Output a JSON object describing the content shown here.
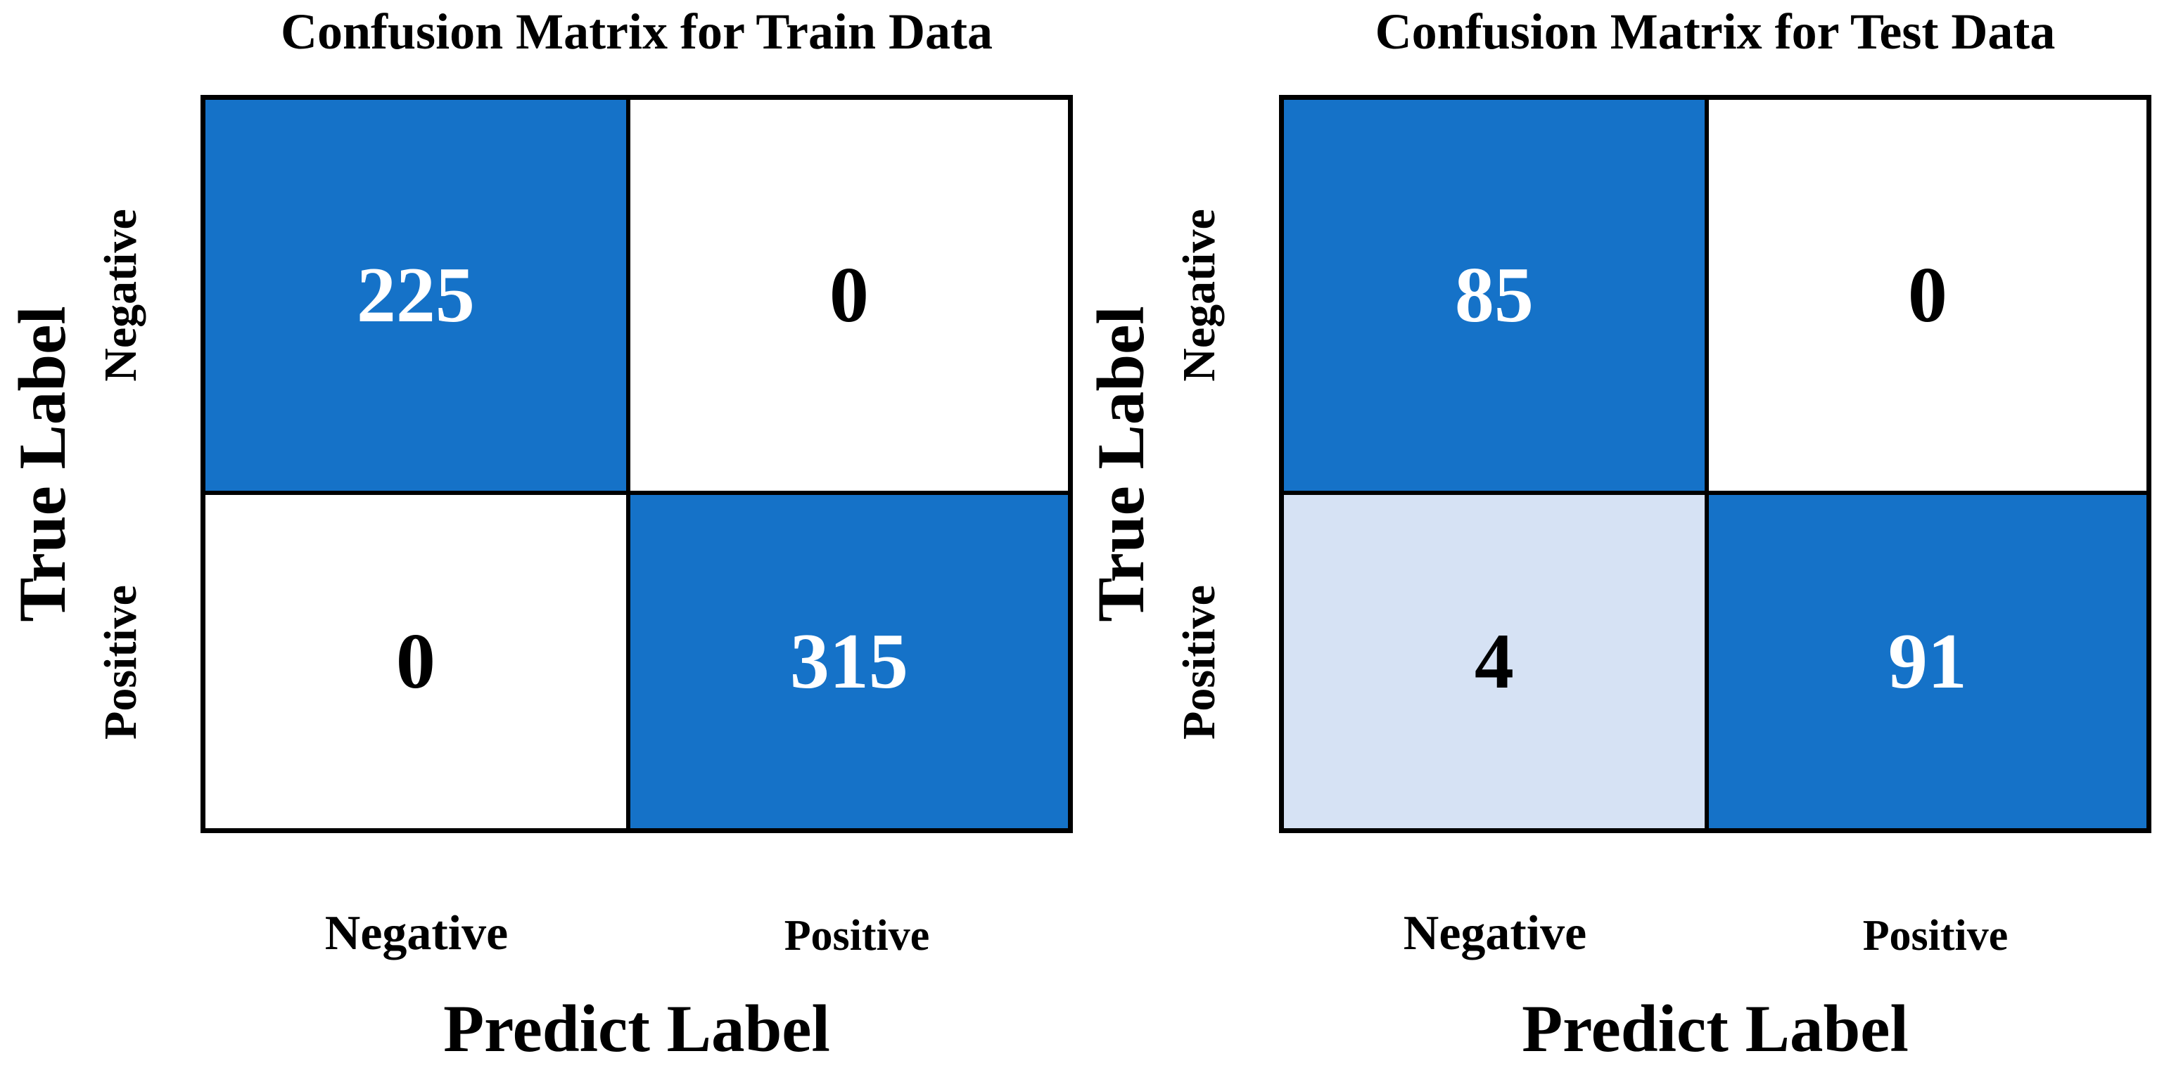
{
  "figure": {
    "background": "#FFFFFF",
    "grid_line_color": "#000000"
  },
  "colors": {
    "high_cell_blue": "#1572C8",
    "low_mid_cell_blue": "#D6E2F4",
    "zero_cell_white": "#FFFFFF",
    "text_black": "#000000",
    "text_white": "#FFFFFF"
  },
  "chart_data": [
    {
      "type": "heatmap",
      "title": "Confusion Matrix for Train Data",
      "xlabel": "Predict Label",
      "ylabel": "True Label",
      "x_tick_labels": [
        "Negative",
        "Positive"
      ],
      "y_tick_labels": [
        "Negative",
        "Positive"
      ],
      "matrix": [
        [
          225,
          0
        ],
        [
          0,
          315
        ]
      ],
      "cell_bg": [
        [
          "#1572C8",
          "#FFFFFF"
        ],
        [
          "#FFFFFF",
          "#1572C8"
        ]
      ],
      "cell_fg": [
        [
          "#FFFFFF",
          "#000000"
        ],
        [
          "#000000",
          "#FFFFFF"
        ]
      ],
      "legend_position": "none",
      "grid": "2x2 black cell borders"
    },
    {
      "type": "heatmap",
      "title": "Confusion Matrix for Test Data",
      "xlabel": "Predict Label",
      "ylabel": "True Label",
      "x_tick_labels": [
        "Negative",
        "Positive"
      ],
      "y_tick_labels": [
        "Negative",
        "Positive"
      ],
      "matrix": [
        [
          85,
          0
        ],
        [
          4,
          91
        ]
      ],
      "cell_bg": [
        [
          "#1572C8",
          "#FFFFFF"
        ],
        [
          "#D6E2F4",
          "#1572C8"
        ]
      ],
      "cell_fg": [
        [
          "#FFFFFF",
          "#000000"
        ],
        [
          "#000000",
          "#FFFFFF"
        ]
      ],
      "legend_position": "none",
      "grid": "2x2 black cell borders"
    }
  ]
}
